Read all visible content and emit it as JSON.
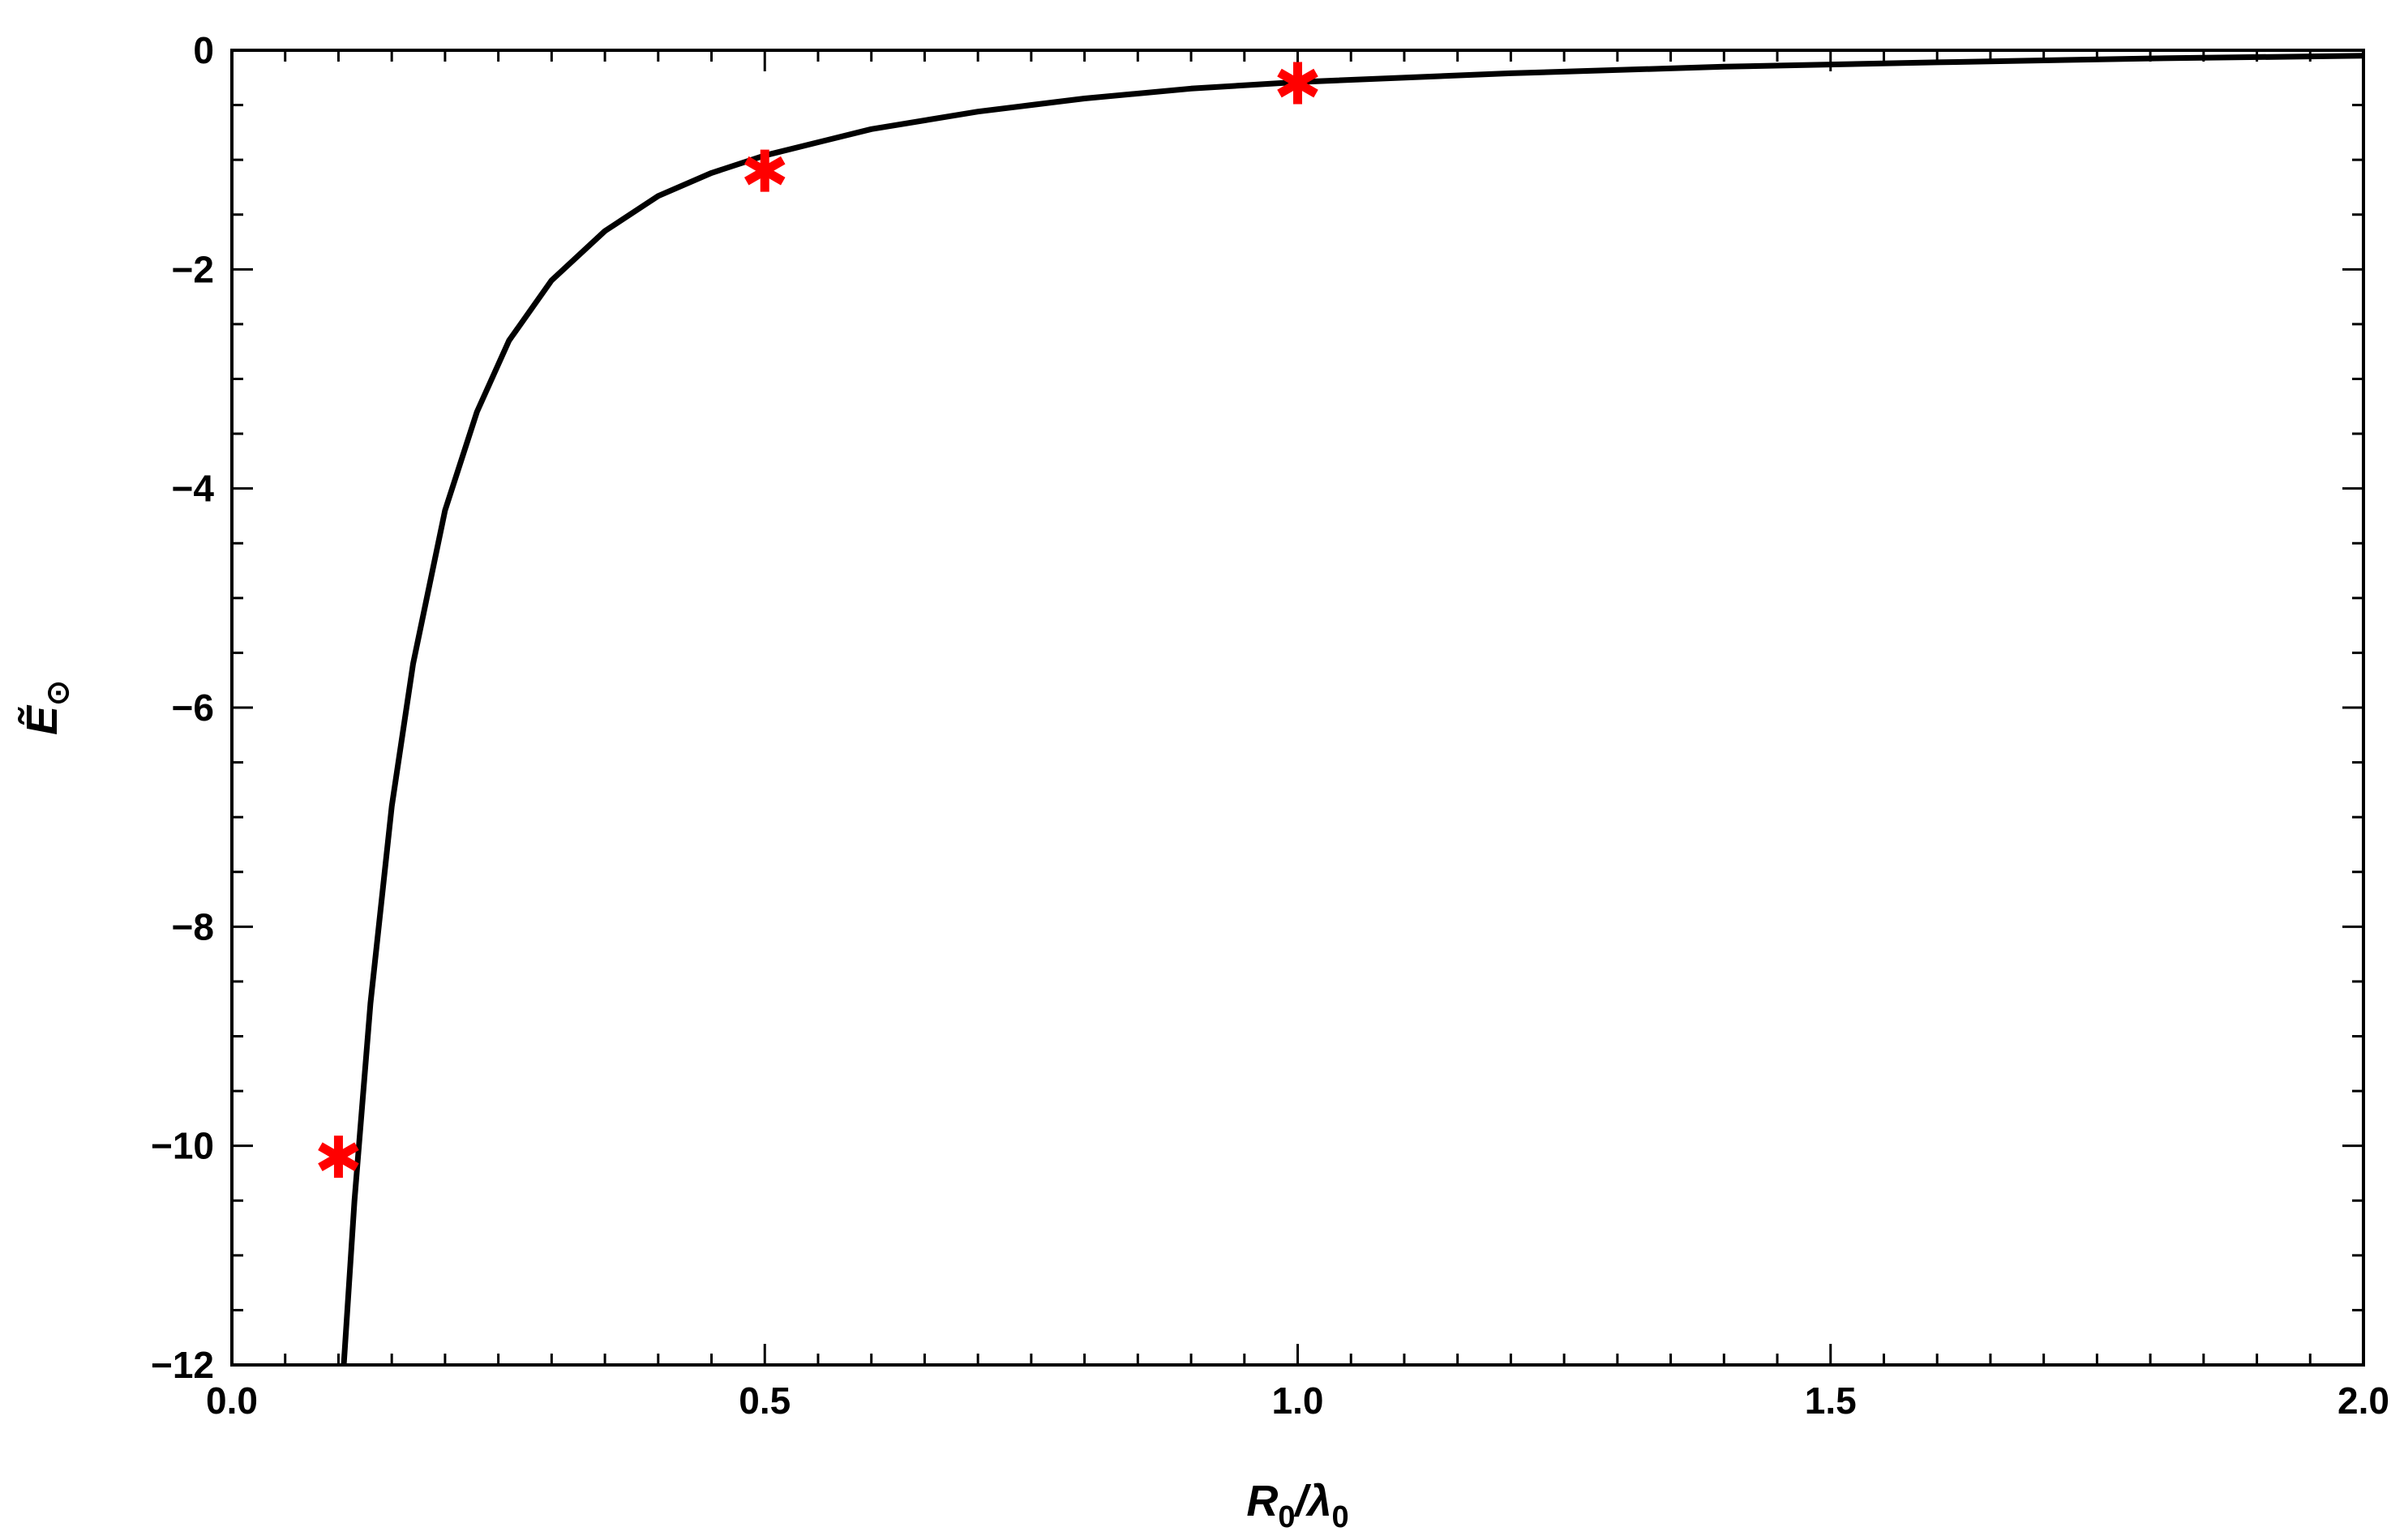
{
  "chart_data": {
    "type": "line",
    "title": "",
    "xlabel": {
      "main": "R",
      "sub1": "0",
      "sep": "/",
      "main2": "λ",
      "sub2": "0"
    },
    "ylabel": {
      "main": "Ẽ",
      "sub": "⊙"
    },
    "xlim": [
      0,
      2
    ],
    "ylim": [
      -12,
      0
    ],
    "x_ticks": [
      {
        "value": 0,
        "label": "0.0"
      },
      {
        "value": 0.5,
        "label": "0.5"
      },
      {
        "value": 1,
        "label": "1.0"
      },
      {
        "value": 1.5,
        "label": "1.5"
      },
      {
        "value": 2,
        "label": "2.0"
      }
    ],
    "y_ticks": [
      {
        "value": 0,
        "label": "0"
      },
      {
        "value": -2,
        "label": "−2"
      },
      {
        "value": -4,
        "label": "−4"
      },
      {
        "value": -6,
        "label": "−6"
      },
      {
        "value": -8,
        "label": "−8"
      },
      {
        "value": -10,
        "label": "−10"
      },
      {
        "value": -12,
        "label": "−12"
      }
    ],
    "grid": false,
    "series": [
      {
        "kind": "line",
        "color": "#000000",
        "points": [
          [
            0.105,
            -12.0
          ],
          [
            0.115,
            -10.5
          ],
          [
            0.13,
            -8.7
          ],
          [
            0.15,
            -6.9
          ],
          [
            0.17,
            -5.6
          ],
          [
            0.2,
            -4.2
          ],
          [
            0.23,
            -3.3
          ],
          [
            0.26,
            -2.65
          ],
          [
            0.3,
            -2.1
          ],
          [
            0.35,
            -1.65
          ],
          [
            0.4,
            -1.33
          ],
          [
            0.45,
            -1.12
          ],
          [
            0.5,
            -0.96
          ],
          [
            0.6,
            -0.72
          ],
          [
            0.7,
            -0.56
          ],
          [
            0.8,
            -0.44
          ],
          [
            0.9,
            -0.35
          ],
          [
            1.0,
            -0.29
          ],
          [
            1.2,
            -0.21
          ],
          [
            1.4,
            -0.15
          ],
          [
            1.6,
            -0.11
          ],
          [
            1.8,
            -0.075
          ],
          [
            2.0,
            -0.05
          ]
        ]
      },
      {
        "kind": "marker",
        "marker": "asterisk",
        "color": "#ff0000",
        "points": [
          [
            0.1,
            -10.1
          ],
          [
            0.5,
            -1.1
          ],
          [
            1.0,
            -0.3
          ]
        ]
      }
    ]
  }
}
